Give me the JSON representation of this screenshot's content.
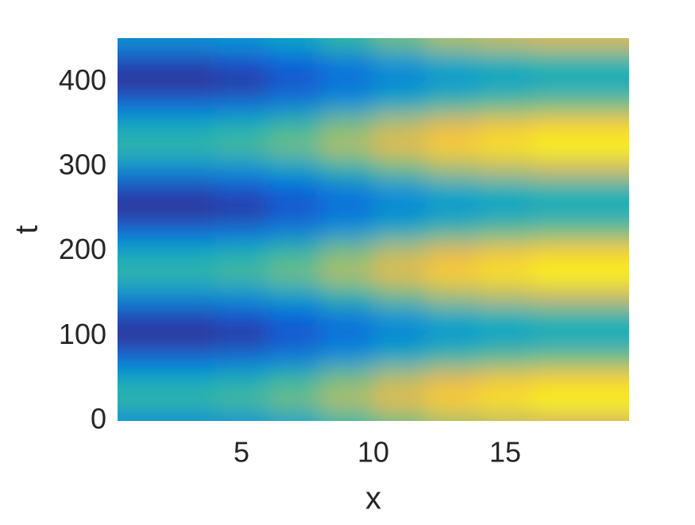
{
  "chart_data": {
    "type": "contourf",
    "xlabel": "x",
    "ylabel": "t",
    "colormap": "parula",
    "clim": [
      0,
      1
    ],
    "xlim": [
      0.3,
      19.7
    ],
    "ylim": [
      0,
      452
    ],
    "xticks": [
      5,
      10,
      15
    ],
    "yticks": [
      0,
      100,
      200,
      300,
      400
    ],
    "x": [
      1,
      3,
      5,
      7,
      9,
      11,
      13,
      15,
      17,
      19
    ],
    "y": [
      0,
      25,
      50,
      75,
      100,
      125,
      150,
      175,
      200,
      225,
      250,
      275,
      300,
      325,
      350,
      375,
      400,
      425,
      450
    ],
    "z": [
      [
        0.39,
        0.39,
        0.42,
        0.49,
        0.59,
        0.68,
        0.76,
        0.8,
        0.83,
        0.83
      ],
      [
        0.59,
        0.59,
        0.62,
        0.68,
        0.77,
        0.86,
        0.93,
        0.96,
        0.99,
        0.99
      ],
      [
        0.5,
        0.5,
        0.53,
        0.59,
        0.69,
        0.78,
        0.85,
        0.89,
        0.92,
        0.92
      ],
      [
        0.21,
        0.21,
        0.24,
        0.31,
        0.41,
        0.52,
        0.6,
        0.64,
        0.67,
        0.67
      ],
      [
        0.01,
        0.01,
        0.04,
        0.12,
        0.23,
        0.34,
        0.43,
        0.48,
        0.51,
        0.51
      ],
      [
        0.1,
        0.1,
        0.13,
        0.21,
        0.31,
        0.42,
        0.51,
        0.55,
        0.58,
        0.58
      ],
      [
        0.39,
        0.39,
        0.42,
        0.49,
        0.59,
        0.68,
        0.76,
        0.8,
        0.83,
        0.83
      ],
      [
        0.59,
        0.59,
        0.62,
        0.68,
        0.77,
        0.86,
        0.93,
        0.96,
        0.99,
        0.99
      ],
      [
        0.5,
        0.5,
        0.53,
        0.59,
        0.69,
        0.78,
        0.85,
        0.89,
        0.92,
        0.92
      ],
      [
        0.21,
        0.21,
        0.24,
        0.31,
        0.41,
        0.52,
        0.6,
        0.64,
        0.67,
        0.67
      ],
      [
        0.01,
        0.01,
        0.04,
        0.12,
        0.23,
        0.34,
        0.43,
        0.48,
        0.51,
        0.51
      ],
      [
        0.1,
        0.1,
        0.13,
        0.21,
        0.31,
        0.42,
        0.51,
        0.55,
        0.58,
        0.58
      ],
      [
        0.39,
        0.39,
        0.42,
        0.49,
        0.59,
        0.68,
        0.76,
        0.8,
        0.83,
        0.83
      ],
      [
        0.59,
        0.59,
        0.62,
        0.68,
        0.77,
        0.86,
        0.93,
        0.96,
        0.99,
        0.99
      ],
      [
        0.5,
        0.5,
        0.53,
        0.59,
        0.69,
        0.78,
        0.85,
        0.89,
        0.92,
        0.92
      ],
      [
        0.21,
        0.21,
        0.24,
        0.31,
        0.41,
        0.52,
        0.6,
        0.64,
        0.67,
        0.67
      ],
      [
        0.01,
        0.01,
        0.04,
        0.12,
        0.23,
        0.34,
        0.43,
        0.48,
        0.51,
        0.51
      ],
      [
        0.1,
        0.1,
        0.13,
        0.21,
        0.31,
        0.42,
        0.51,
        0.55,
        0.58,
        0.58
      ],
      [
        0.39,
        0.39,
        0.42,
        0.49,
        0.59,
        0.68,
        0.76,
        0.8,
        0.83,
        0.83
      ]
    ]
  }
}
